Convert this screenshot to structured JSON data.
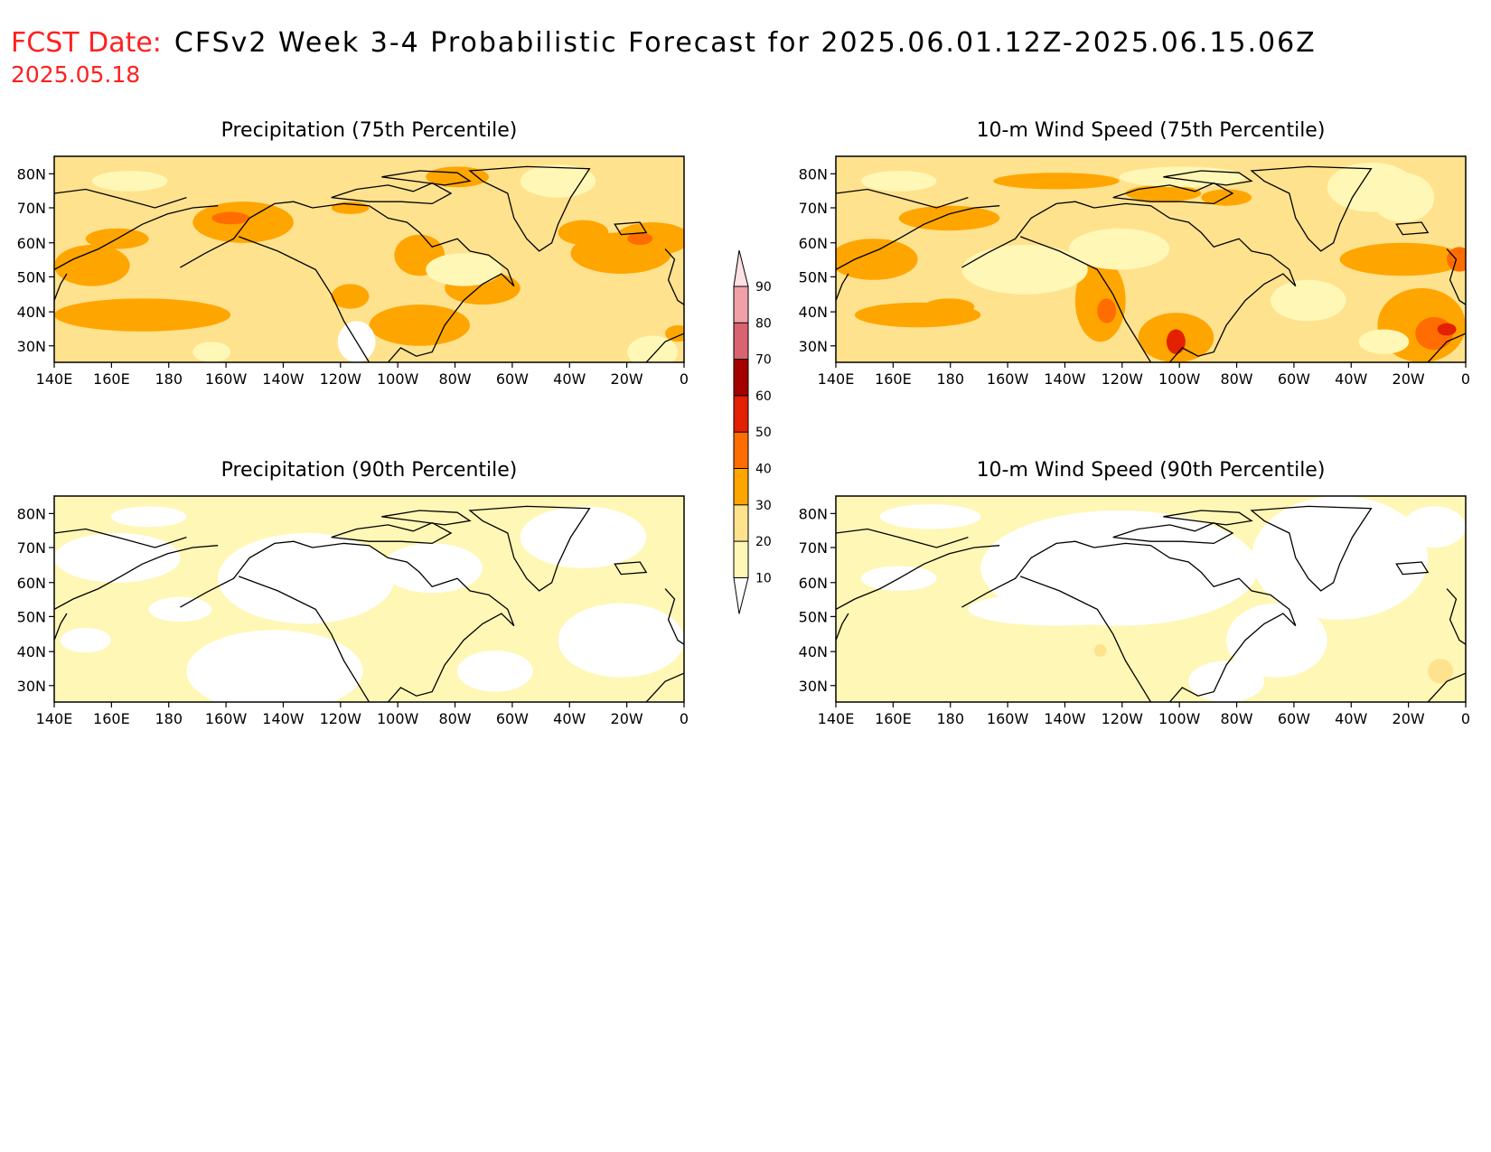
{
  "header": {
    "fcst_label": "FCST Date:",
    "fcst_date": "2025.05.18",
    "title": "CFSv2 Week 3-4 Probabilistic Forecast for 2025.06.01.12Z-2025.06.15.06Z"
  },
  "axes": {
    "lon_labels": [
      "140E",
      "160E",
      "180",
      "160W",
      "140W",
      "120W",
      "100W",
      "80W",
      "60W",
      "40W",
      "20W",
      "0"
    ],
    "lat_labels": [
      "80N",
      "70N",
      "60N",
      "50N",
      "40N",
      "30N"
    ]
  },
  "colorbar": {
    "levels": [
      "10",
      "20",
      "30",
      "40",
      "50",
      "60",
      "70",
      "80",
      "90"
    ],
    "colors": [
      "#ffffff",
      "#fff7b6",
      "#ffe28e",
      "#ffa500",
      "#ff6d00",
      "#e32000",
      "#a50000",
      "#d9636e",
      "#f1a0a9",
      "#fde0e4"
    ]
  },
  "panels": [
    {
      "title": "Precipitation (75th Percentile)",
      "variable": "precipitation",
      "percentile": "75th",
      "dominant_category": "20-30"
    },
    {
      "title": "10-m Wind Speed (75th Percentile)",
      "variable": "wind",
      "percentile": "75th",
      "dominant_category": "20-30"
    },
    {
      "title": "Precipitation (90th Percentile)",
      "variable": "precipitation",
      "percentile": "90th",
      "dominant_category": "10-20"
    },
    {
      "title": "10-m Wind Speed (90th Percentile)",
      "variable": "wind",
      "percentile": "90th",
      "dominant_category": "10-20"
    }
  ]
}
